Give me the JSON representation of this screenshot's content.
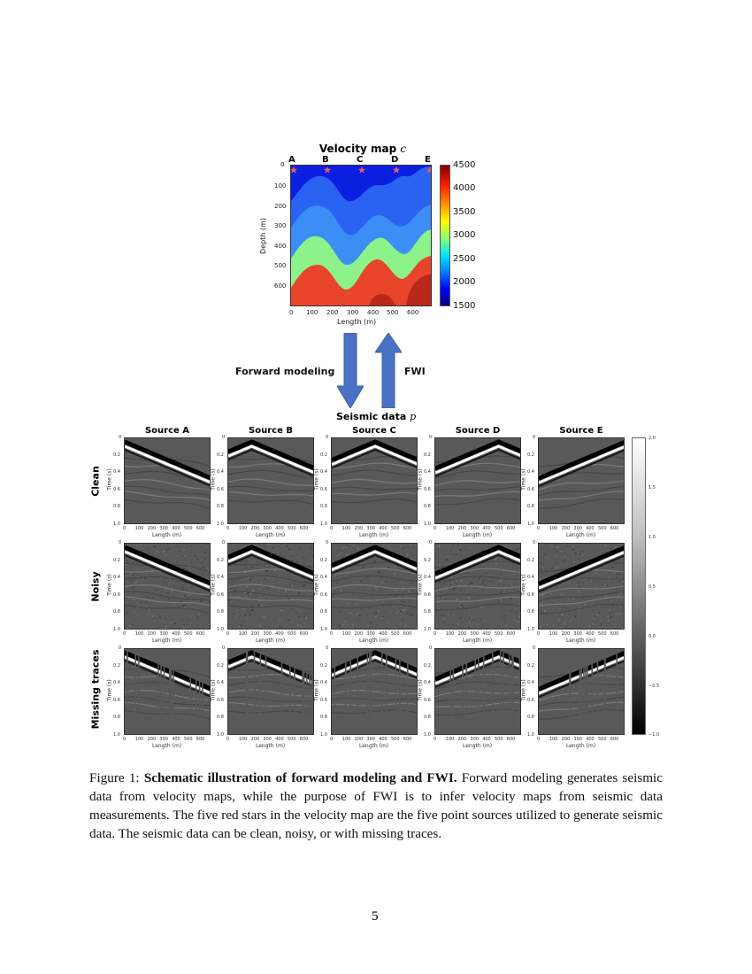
{
  "figure": {
    "velocity_map": {
      "title": "Velocity map ",
      "title_var": "c",
      "source_labels": [
        "A",
        "B",
        "C",
        "D",
        "E"
      ],
      "y_axis_label": "Depth (m)",
      "y_ticks": [
        "0",
        "100",
        "200",
        "300",
        "400",
        "500",
        "600"
      ],
      "x_axis_label": "Length (m)",
      "x_ticks": [
        "0",
        "100",
        "200",
        "300",
        "400",
        "500",
        "600"
      ],
      "colorbar_ticks": [
        "4500",
        "4000",
        "3500",
        "3000",
        "2500",
        "2000",
        "1500"
      ],
      "colormap": "jet",
      "layer_colors": [
        "#0a1fe0",
        "#2a63f2",
        "#3a8ef5",
        "#8ef28a",
        "#e8452a",
        "#c42a1c"
      ],
      "star_color": "#e35b6b"
    },
    "arrows": {
      "forward_label": "Forward modeling",
      "fwi_label": "FWI",
      "arrow_color": "#4a72c4"
    },
    "seismic": {
      "title": "Seismic data ",
      "title_var": "p",
      "columns": [
        "Source A",
        "Source B",
        "Source C",
        "Source D",
        "Source E"
      ],
      "rows": [
        "Clean",
        "Noisy",
        "Missing traces"
      ],
      "y_axis_label": "Time (s)",
      "y_ticks": [
        "0",
        "0.2",
        "0.4",
        "0.6",
        "0.8",
        "1.0"
      ],
      "x_axis_label": "Length (m)",
      "x_ticks": [
        "0",
        "100",
        "200",
        "300",
        "400",
        "500",
        "600"
      ],
      "colorbar_ticks": [
        "2.0",
        "1.5",
        "1.0",
        "0.5",
        "0.0",
        "−0.5",
        "−1.0"
      ],
      "colormap": "gray"
    },
    "caption": {
      "prefix": "Figure 1: ",
      "bold": "Schematic illustration of forward modeling and FWI.",
      "text": " Forward modeling generates seismic data from velocity maps, while the purpose of FWI is to infer velocity maps from seismic data measurements. The five red stars in the velocity map are the five point sources utilized to generate seismic data. The seismic data can be clean, noisy, or with missing traces."
    }
  },
  "page": {
    "number": "5"
  }
}
